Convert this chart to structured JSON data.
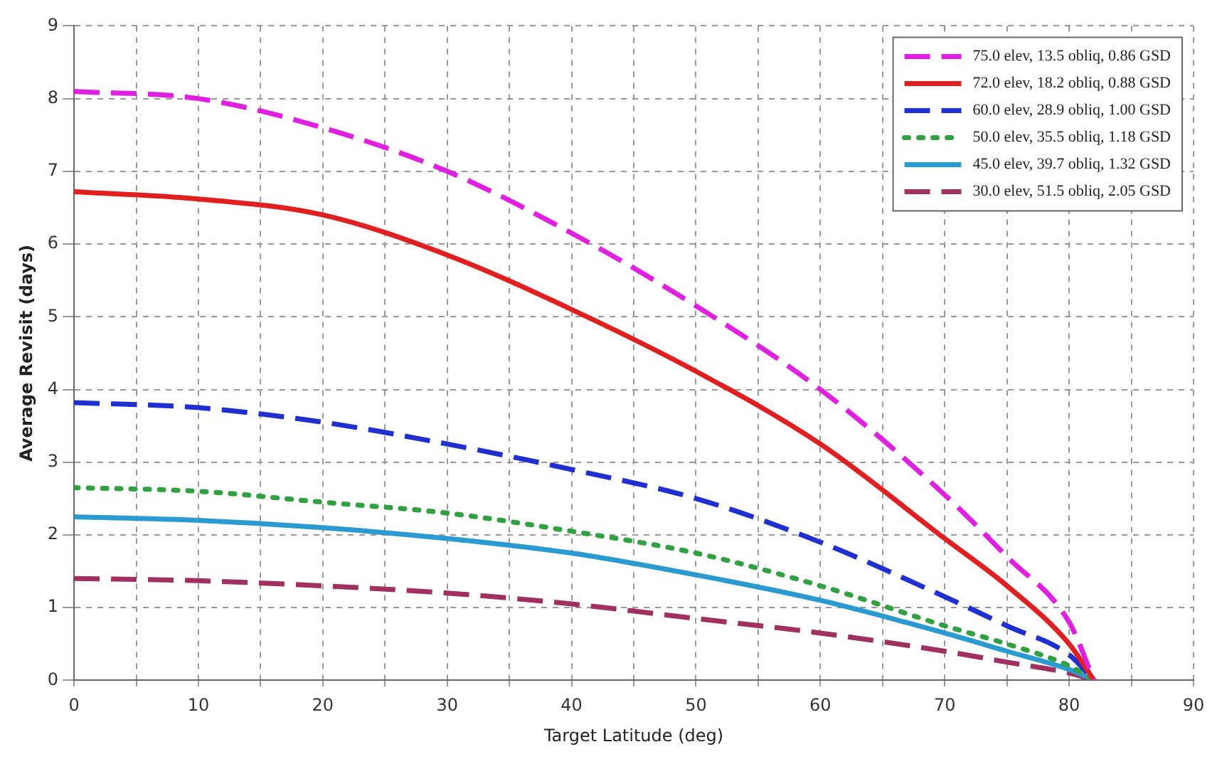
{
  "chart_data": {
    "type": "line",
    "xlabel": "Target Latitude (deg)",
    "ylabel": "Average Revisit (days)",
    "x": [
      0,
      10,
      20,
      30,
      40,
      50,
      60,
      70,
      75,
      80,
      82
    ],
    "xlim": [
      0,
      90
    ],
    "xticks": [
      0,
      {
        "value": 5,
        "label": null
      },
      10,
      {
        "value": 15,
        "label": null
      },
      20,
      {
        "value": 25,
        "label": null
      },
      30,
      {
        "value": 35,
        "label": null
      },
      40,
      {
        "value": 45,
        "label": null
      },
      50,
      {
        "value": 55,
        "label": null
      },
      60,
      {
        "value": 65,
        "label": null
      },
      70,
      {
        "value": 75,
        "label": null
      },
      80,
      {
        "value": 85,
        "label": null
      },
      90
    ],
    "ylim": [
      0,
      9
    ],
    "yticks": [
      0,
      1,
      2,
      3,
      4,
      5,
      6,
      7,
      8,
      9
    ],
    "grid": true,
    "legend": "top right",
    "marker": "none",
    "series": [
      {
        "name": "75.0 elev, 13.5 obliq, 0.86 GSD",
        "color": "#e020e0",
        "line_style": "dashed",
        "values": [
          8.1,
          8.0,
          7.6,
          7.0,
          6.15,
          5.15,
          4.0,
          2.55,
          1.7,
          0.8,
          0
        ]
      },
      {
        "name": "72.0 elev, 18.2 obliq, 0.88 GSD",
        "color": "#e02020",
        "line_style": "solid",
        "values": [
          6.72,
          6.62,
          6.4,
          5.85,
          5.1,
          4.25,
          3.25,
          1.95,
          1.3,
          0.5,
          0
        ]
      },
      {
        "name": "60.0 elev, 28.9 obliq, 1.00 GSD",
        "color": "#2030d0",
        "line_style": "dashed",
        "values": [
          3.82,
          3.75,
          3.55,
          3.25,
          2.9,
          2.5,
          1.9,
          1.15,
          0.75,
          0.35,
          0
        ]
      },
      {
        "name": "50.0 elev, 35.5 obliq, 1.18 GSD",
        "color": "#30a040",
        "line_style": "dotted",
        "values": [
          2.65,
          2.6,
          2.45,
          2.3,
          2.05,
          1.75,
          1.3,
          0.75,
          0.5,
          0.2,
          0
        ]
      },
      {
        "name": "45.0 elev, 39.7 obliq, 1.32 GSD",
        "color": "#2a9ad0",
        "line_style": "solid",
        "values": [
          2.25,
          2.2,
          2.1,
          1.95,
          1.75,
          1.45,
          1.1,
          0.65,
          0.4,
          0.15,
          0
        ]
      },
      {
        "name": "30.0 elev, 51.5 obliq, 2.05 GSD",
        "color": "#a03060",
        "line_style": "dashed",
        "values": [
          1.4,
          1.37,
          1.3,
          1.2,
          1.05,
          0.85,
          0.65,
          0.4,
          0.25,
          0.1,
          0
        ]
      }
    ]
  }
}
